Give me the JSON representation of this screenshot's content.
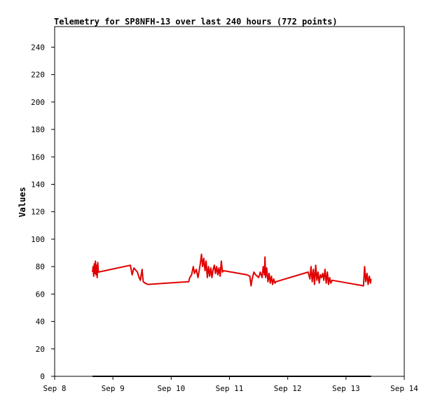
{
  "chart_data": {
    "type": "line",
    "title": "Telemetry for SP8NFH-13 over last 240 hours (772 points)",
    "xlabel": "",
    "ylabel": "Values",
    "ylim": [
      0,
      255
    ],
    "xlim": [
      8,
      14
    ],
    "y_ticks": [
      0,
      20,
      40,
      60,
      80,
      100,
      120,
      140,
      160,
      180,
      200,
      220,
      240
    ],
    "x_ticks": [
      {
        "value": 8,
        "label": "Sep 8"
      },
      {
        "value": 9,
        "label": "Sep 9"
      },
      {
        "value": 10,
        "label": "Sep 10"
      },
      {
        "value": 11,
        "label": "Sep 11"
      },
      {
        "value": 12,
        "label": "Sep 12"
      },
      {
        "value": 13,
        "label": "Sep 13"
      },
      {
        "value": 14,
        "label": "Sep 14"
      }
    ],
    "grid": false,
    "legend": "none",
    "series": [
      {
        "color": "#e00000",
        "points": [
          [
            8.65,
            76
          ],
          [
            8.66,
            80
          ],
          [
            8.67,
            73
          ],
          [
            8.68,
            82
          ],
          [
            8.69,
            75
          ],
          [
            8.7,
            84
          ],
          [
            8.71,
            74
          ],
          [
            8.72,
            81
          ],
          [
            8.73,
            72
          ],
          [
            8.74,
            83
          ],
          [
            8.75,
            76
          ],
          [
            9.3,
            81
          ],
          [
            9.33,
            74
          ],
          [
            9.36,
            79
          ],
          [
            9.42,
            76
          ],
          [
            9.45,
            72
          ],
          [
            9.47,
            70
          ],
          [
            9.5,
            78
          ],
          [
            9.52,
            69
          ],
          [
            9.55,
            68
          ],
          [
            9.6,
            67
          ],
          [
            10.3,
            69
          ],
          [
            10.32,
            72
          ],
          [
            10.35,
            74
          ],
          [
            10.38,
            80
          ],
          [
            10.4,
            75
          ],
          [
            10.43,
            78
          ],
          [
            10.46,
            72
          ],
          [
            10.5,
            82
          ],
          [
            10.52,
            89
          ],
          [
            10.54,
            80
          ],
          [
            10.56,
            86
          ],
          [
            10.58,
            77
          ],
          [
            10.6,
            84
          ],
          [
            10.62,
            72
          ],
          [
            10.64,
            80
          ],
          [
            10.66,
            73
          ],
          [
            10.68,
            79
          ],
          [
            10.7,
            72
          ],
          [
            10.72,
            78
          ],
          [
            10.74,
            81
          ],
          [
            10.76,
            75
          ],
          [
            10.78,
            80
          ],
          [
            10.8,
            74
          ],
          [
            10.82,
            79
          ],
          [
            10.84,
            73
          ],
          [
            10.86,
            84
          ],
          [
            10.88,
            76
          ],
          [
            10.9,
            77
          ],
          [
            11.3,
            74
          ],
          [
            11.35,
            73
          ],
          [
            11.37,
            66
          ],
          [
            11.39,
            71
          ],
          [
            11.42,
            76
          ],
          [
            11.45,
            74
          ],
          [
            11.5,
            72
          ],
          [
            11.53,
            76
          ],
          [
            11.56,
            72
          ],
          [
            11.58,
            80
          ],
          [
            11.6,
            74
          ],
          [
            11.61,
            87
          ],
          [
            11.62,
            72
          ],
          [
            11.64,
            79
          ],
          [
            11.66,
            69
          ],
          [
            11.68,
            75
          ],
          [
            11.7,
            68
          ],
          [
            11.72,
            73
          ],
          [
            11.74,
            67
          ],
          [
            11.76,
            71
          ],
          [
            11.78,
            68
          ],
          [
            11.8,
            69
          ],
          [
            12.35,
            76
          ],
          [
            12.38,
            71
          ],
          [
            12.4,
            80
          ],
          [
            12.42,
            69
          ],
          [
            12.44,
            78
          ],
          [
            12.46,
            67
          ],
          [
            12.48,
            81
          ],
          [
            12.5,
            70
          ],
          [
            12.52,
            76
          ],
          [
            12.54,
            68
          ],
          [
            12.56,
            74
          ],
          [
            12.58,
            72
          ],
          [
            12.6,
            75
          ],
          [
            12.62,
            70
          ],
          [
            12.64,
            78
          ],
          [
            12.66,
            68
          ],
          [
            12.68,
            76
          ],
          [
            12.7,
            67
          ],
          [
            12.72,
            72
          ],
          [
            12.74,
            68
          ],
          [
            12.76,
            70
          ],
          [
            13.3,
            66
          ],
          [
            13.32,
            80
          ],
          [
            13.34,
            69
          ],
          [
            13.36,
            75
          ],
          [
            13.38,
            67
          ],
          [
            13.4,
            73
          ],
          [
            13.42,
            68
          ],
          [
            13.43,
            71
          ]
        ]
      },
      {
        "color": "#000000",
        "points": [
          [
            8.65,
            0
          ],
          [
            13.43,
            0
          ]
        ]
      }
    ]
  }
}
